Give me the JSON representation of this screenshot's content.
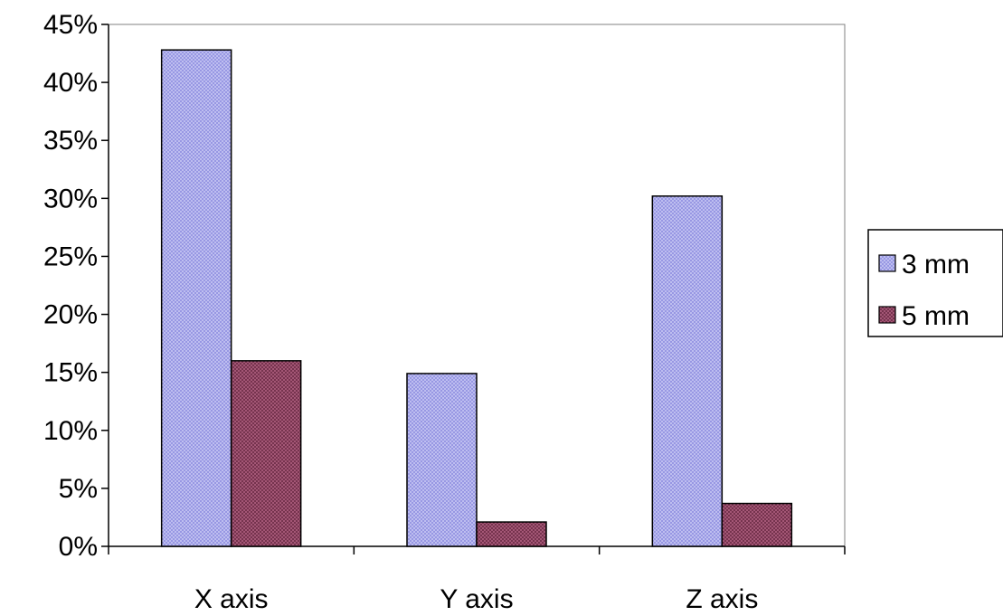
{
  "chart_data": {
    "type": "bar",
    "title": "",
    "xlabel": "",
    "ylabel": "",
    "categories": [
      "X axis",
      "Y axis",
      "Z axis"
    ],
    "series": [
      {
        "name": "3 mm",
        "values": [
          0.428,
          0.149,
          0.302
        ],
        "color": "#c8c8f4",
        "pattern_color": "#8e8ee0"
      },
      {
        "name": "5 mm",
        "values": [
          0.16,
          0.021,
          0.037
        ],
        "color": "#b06080",
        "pattern_color": "#6a2a44"
      }
    ],
    "ylim": [
      0,
      0.45
    ],
    "yticks": [
      0,
      0.05,
      0.1,
      0.15,
      0.2,
      0.25,
      0.3,
      0.35,
      0.4,
      0.45
    ],
    "ytick_labels": [
      "0%",
      "5%",
      "10%",
      "15%",
      "20%",
      "25%",
      "30%",
      "35%",
      "40%",
      "45%"
    ],
    "grid": false,
    "legend_position": "right"
  }
}
